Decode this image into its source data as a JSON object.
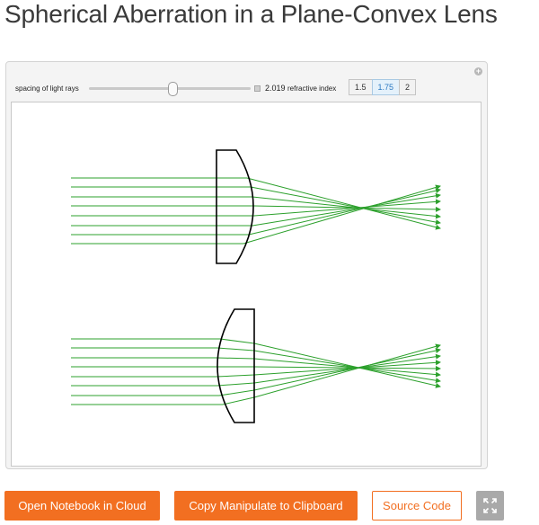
{
  "page": {
    "title": "Spherical Aberration in a Plane-Convex Lens"
  },
  "controls": {
    "spacing_label": "spacing of light rays",
    "spacing_value": "2.019",
    "spacing_fraction": 0.52,
    "refractive_label": "refractive index",
    "refractive_options": [
      "1.5",
      "1.75",
      "2"
    ],
    "refractive_selected": "1.75"
  },
  "buttons": {
    "open_cloud": "Open Notebook in Cloud",
    "copy_manipulate": "Copy Manipulate to Clipboard",
    "source_code": "Source Code"
  },
  "colors": {
    "accent": "#f26f21",
    "ray": "#2ca02c",
    "lens": "#000000"
  }
}
